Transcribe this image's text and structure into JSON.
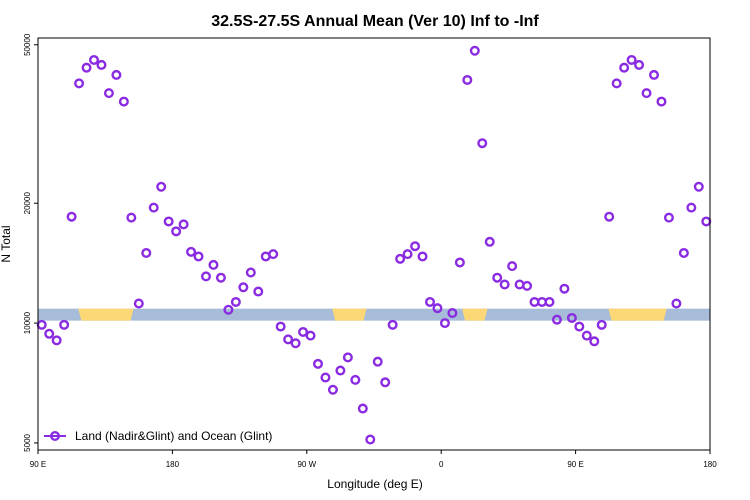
{
  "chart_data": {
    "type": "scatter",
    "title": "32.5S-27.5S Annual Mean (Ver 10)   Inf to -Inf",
    "xlabel": "Longitude (deg E)",
    "ylabel": "N Total",
    "x_scale": "linear",
    "y_scale": "log",
    "xlim": [
      90,
      540
    ],
    "ylim": [
      4800,
      52000
    ],
    "x_ticks": [
      {
        "value": 90,
        "label": "90 E"
      },
      {
        "value": 180,
        "label": "180"
      },
      {
        "value": 270,
        "label": "90 W"
      },
      {
        "value": 360,
        "label": "0"
      },
      {
        "value": 450,
        "label": "90 E"
      },
      {
        "value": 540,
        "label": "180"
      }
    ],
    "y_ticks": [
      {
        "value": 5000,
        "label": "5000"
      },
      {
        "value": 10000,
        "label": "10000"
      },
      {
        "value": 20000,
        "label": "20000"
      },
      {
        "value": 50000,
        "label": "50000"
      }
    ],
    "legend": {
      "position": "bottom-left",
      "entries": [
        {
          "label": "Land (Nadir&Glint) and Ocean (Glint)",
          "color": "#8a2be2"
        }
      ]
    },
    "colors": {
      "marker": "#8a2be2",
      "ocean": "#a7bcd8",
      "land": "#fbd776"
    },
    "surface_strip": {
      "y_center": 10500,
      "land_ranges": [
        [
          117,
          154
        ],
        [
          287,
          310
        ],
        [
          374,
          391
        ],
        [
          472,
          511
        ]
      ]
    },
    "series": [
      {
        "name": "Land (Nadir&Glint) and Ocean (Glint)",
        "x": [
          92.5,
          97.5,
          102.5,
          107.5,
          112.5,
          117.5,
          122.5,
          127.5,
          132.5,
          137.5,
          142.5,
          147.5,
          152.5,
          157.5,
          162.5,
          167.5,
          172.5,
          177.5,
          182.5,
          187.5,
          192.5,
          197.5,
          202.5,
          207.5,
          212.5,
          217.5,
          222.5,
          227.5,
          232.5,
          237.5,
          242.5,
          247.5,
          252.5,
          257.5,
          262.5,
          267.5,
          272.5,
          277.5,
          282.5,
          287.5,
          292.5,
          297.5,
          302.5,
          307.5,
          312.5,
          317.5,
          322.5,
          327.5,
          332.5,
          337.5,
          342.5,
          347.5,
          352.5,
          357.5,
          362.5,
          367.5,
          372.5,
          377.5,
          382.5,
          387.5,
          392.5,
          397.5,
          402.5,
          407.5,
          412.5,
          417.5,
          422.5,
          427.5,
          432.5,
          437.5,
          442.5,
          447.5,
          452.5,
          457.5,
          462.5,
          467.5,
          472.5,
          477.5,
          482.5,
          487.5,
          492.5,
          497.5,
          502.5,
          507.5,
          512.5,
          517.5,
          522.5,
          527.5,
          532.5,
          537.5
        ],
        "y": [
          9900,
          9400,
          9050,
          9900,
          18500,
          40000,
          43800,
          45800,
          44500,
          37800,
          42000,
          36000,
          18400,
          11200,
          15000,
          19500,
          22000,
          18000,
          17000,
          17700,
          15100,
          14700,
          13100,
          14000,
          13000,
          10800,
          11300,
          12300,
          13400,
          12000,
          14700,
          14900,
          9800,
          9100,
          8900,
          9500,
          9300,
          7900,
          7300,
          6800,
          7600,
          8200,
          7200,
          6100,
          5100,
          8000,
          7100,
          9900,
          14500,
          14900,
          15600,
          14700,
          11300,
          10900,
          10000,
          10600,
          14200,
          40800,
          48300,
          28300,
          16000,
          13000,
          12500,
          13900,
          12500,
          12400,
          11300,
          11300,
          11300,
          10200,
          12200,
          10300,
          9800,
          9300,
          9000,
          9900,
          18500,
          40000,
          43800,
          45800,
          44500,
          37800,
          42000,
          36000,
          18400,
          11200,
          15000,
          19500,
          22000,
          18000
        ]
      }
    ]
  }
}
